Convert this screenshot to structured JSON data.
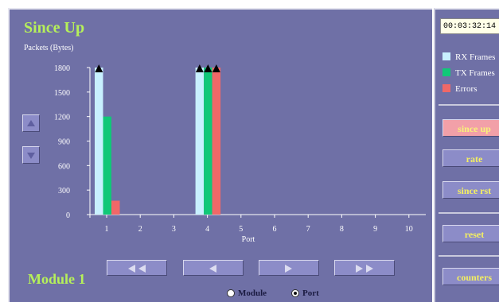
{
  "header": {
    "title": "Since Up"
  },
  "module": {
    "label": "Module 1"
  },
  "timer": {
    "value": "00:03:32:14"
  },
  "legend": [
    {
      "label": "RX Frames",
      "color": "#c8f0ff"
    },
    {
      "label": "TX Frames",
      "color": "#10c878"
    },
    {
      "label": "Errors",
      "color": "#f06868"
    }
  ],
  "buttons": {
    "since_up": "since up",
    "rate": "rate",
    "since_rst": "since rst",
    "reset": "reset",
    "counters": "counters"
  },
  "side_controls": {
    "up_icon": "triangle-up-icon",
    "down_icon": "triangle-down-icon"
  },
  "nav_controls": [
    "double-left-icon",
    "left-icon",
    "right-icon",
    "double-right-icon"
  ],
  "view_toggle": {
    "options": [
      {
        "label": "Module",
        "selected": false
      },
      {
        "label": "Port",
        "selected": true
      }
    ]
  },
  "chart_data": {
    "type": "bar",
    "ylabel": "Packets (Bytes)",
    "xlabel": "Port",
    "categories": [
      "1",
      "2",
      "3",
      "4",
      "5",
      "6",
      "7",
      "8",
      "9",
      "10"
    ],
    "ylim": [
      0,
      1800
    ],
    "yticks": [
      0,
      300,
      600,
      900,
      1200,
      1500,
      1800
    ],
    "series": [
      {
        "name": "RX Frames",
        "color": "#c8f0ff",
        "values": [
          1800,
          0,
          0,
          1800,
          0,
          0,
          0,
          0,
          0,
          0
        ]
      },
      {
        "name": "TX Frames",
        "color": "#10c878",
        "values": [
          1200,
          0,
          0,
          1800,
          0,
          0,
          0,
          0,
          0,
          0
        ]
      },
      {
        "name": "Errors",
        "color": "#f06868",
        "values": [
          170,
          0,
          0,
          1800,
          0,
          0,
          0,
          0,
          0,
          0
        ]
      }
    ],
    "overflow_markers": [
      {
        "category": "1",
        "series": "RX Frames"
      },
      {
        "category": "4",
        "series": "RX Frames"
      },
      {
        "category": "4",
        "series": "TX Frames"
      },
      {
        "category": "4",
        "series": "Errors"
      }
    ],
    "grid": false
  }
}
